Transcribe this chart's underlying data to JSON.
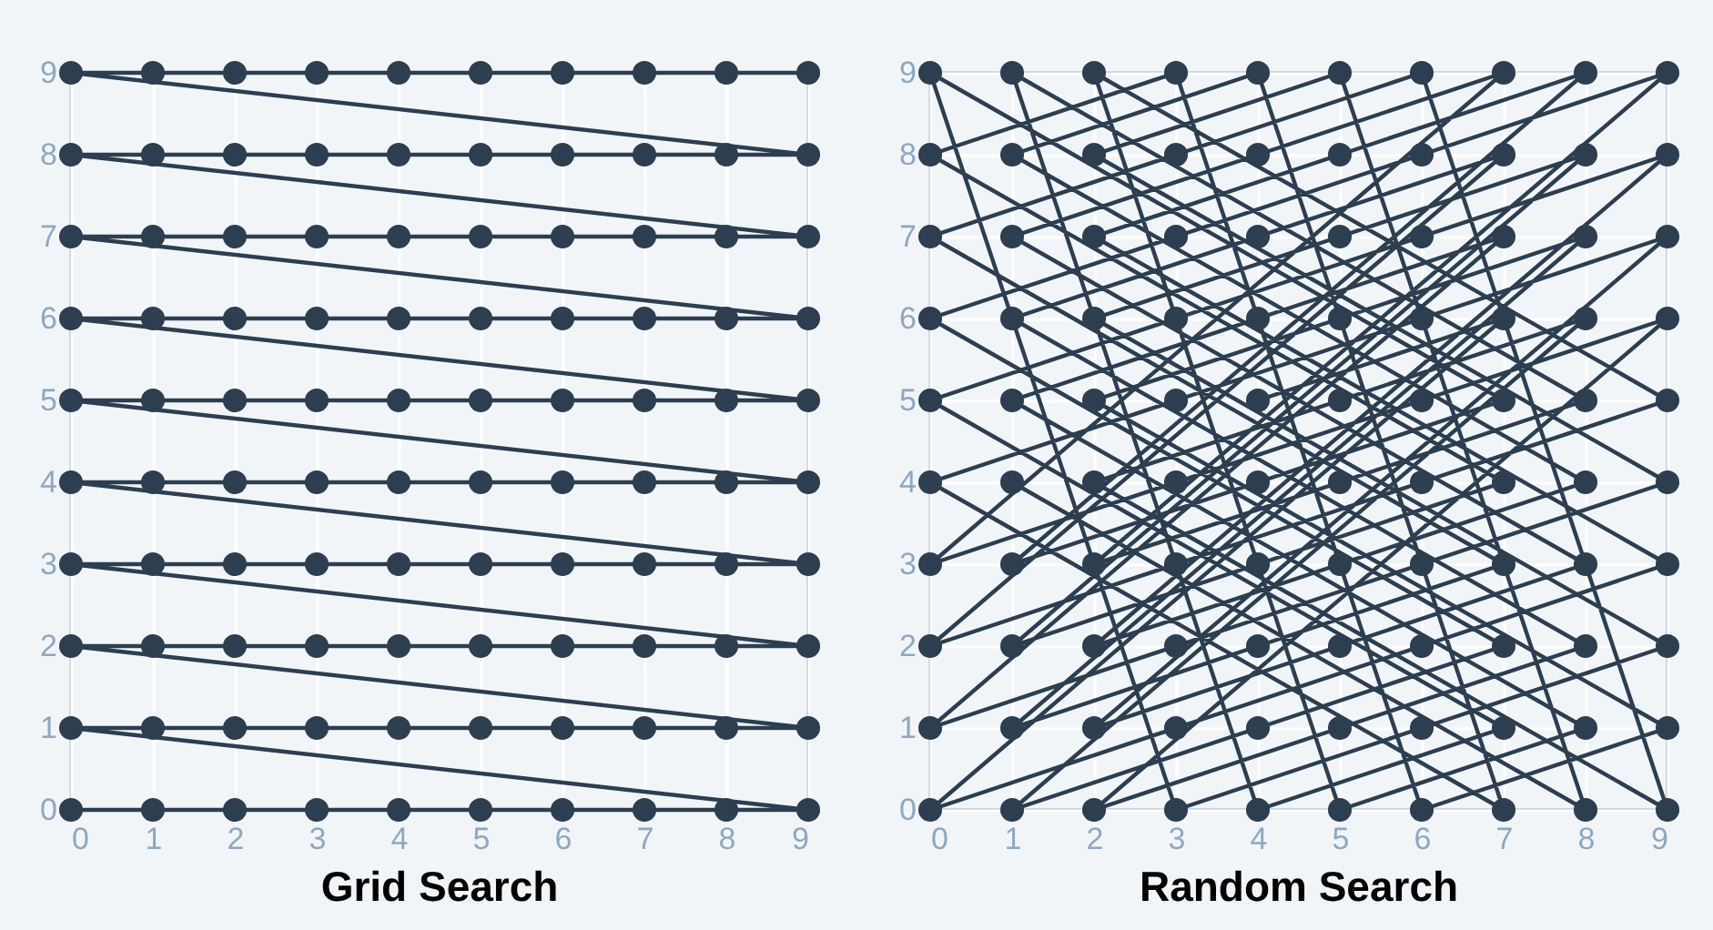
{
  "chart_data": [
    {
      "type": "line",
      "title": "Grid Search",
      "marker": "circle",
      "grid": true,
      "xlim": [
        0,
        9
      ],
      "ylim": [
        0,
        9
      ],
      "xticks": [
        0,
        1,
        2,
        3,
        4,
        5,
        6,
        7,
        8,
        9
      ],
      "yticks": [
        0,
        1,
        2,
        3,
        4,
        5,
        6,
        7,
        8,
        9
      ],
      "x": [
        0,
        1,
        2,
        3,
        4,
        5,
        6,
        7,
        8,
        9,
        0,
        1,
        2,
        3,
        4,
        5,
        6,
        7,
        8,
        9,
        0,
        1,
        2,
        3,
        4,
        5,
        6,
        7,
        8,
        9,
        0,
        1,
        2,
        3,
        4,
        5,
        6,
        7,
        8,
        9,
        0,
        1,
        2,
        3,
        4,
        5,
        6,
        7,
        8,
        9,
        0,
        1,
        2,
        3,
        4,
        5,
        6,
        7,
        8,
        9,
        0,
        1,
        2,
        3,
        4,
        5,
        6,
        7,
        8,
        9,
        0,
        1,
        2,
        3,
        4,
        5,
        6,
        7,
        8,
        9,
        0,
        1,
        2,
        3,
        4,
        5,
        6,
        7,
        8,
        9,
        0,
        1,
        2,
        3,
        4,
        5,
        6,
        7,
        8,
        9
      ],
      "series": [
        {
          "color": "#2c3e50",
          "values": [
            0,
            0,
            0,
            0,
            0,
            0,
            0,
            0,
            0,
            0,
            1,
            1,
            1,
            1,
            1,
            1,
            1,
            1,
            1,
            1,
            2,
            2,
            2,
            2,
            2,
            2,
            2,
            2,
            2,
            2,
            3,
            3,
            3,
            3,
            3,
            3,
            3,
            3,
            3,
            3,
            4,
            4,
            4,
            4,
            4,
            4,
            4,
            4,
            4,
            4,
            5,
            5,
            5,
            5,
            5,
            5,
            5,
            5,
            5,
            5,
            6,
            6,
            6,
            6,
            6,
            6,
            6,
            6,
            6,
            6,
            7,
            7,
            7,
            7,
            7,
            7,
            7,
            7,
            7,
            7,
            8,
            8,
            8,
            8,
            8,
            8,
            8,
            8,
            8,
            8,
            9,
            9,
            9,
            9,
            9,
            9,
            9,
            9,
            9,
            9
          ]
        }
      ]
    },
    {
      "type": "line",
      "title": "Random Search",
      "marker": "circle",
      "grid": true,
      "xlim": [
        0,
        9
      ],
      "ylim": [
        0,
        9
      ],
      "xticks": [
        0,
        1,
        2,
        3,
        4,
        5,
        6,
        7,
        8,
        9
      ],
      "yticks": [
        0,
        1,
        2,
        3,
        4,
        5,
        6,
        7,
        8,
        9
      ],
      "x": [
        1,
        8,
        5,
        2,
        9,
        6,
        3,
        0,
        7,
        4,
        1,
        8,
        5,
        2,
        9,
        6,
        3,
        0,
        7,
        4,
        1,
        8,
        5,
        2,
        9,
        6,
        3,
        0,
        7,
        4,
        1,
        8,
        5,
        2,
        9,
        6,
        3,
        0,
        7,
        4,
        1,
        8,
        5,
        2,
        9,
        6,
        3,
        0,
        7,
        4,
        1,
        8,
        5,
        2,
        9,
        6,
        3,
        0,
        7,
        4,
        1,
        8,
        5,
        2,
        9,
        6,
        3,
        0,
        7,
        4,
        1,
        8,
        5,
        2,
        9,
        6,
        3,
        0,
        7,
        4,
        1,
        8,
        5,
        2,
        9,
        6,
        3,
        0,
        7,
        4,
        1,
        8,
        5,
        2,
        9,
        6,
        3,
        0,
        7,
        4
      ],
      "series": [
        {
          "color": "#2c3e50",
          "values": [
            4,
            0,
            9,
            8,
            4,
            3,
            2,
            1,
            7,
            6,
            5,
            1,
            0,
            9,
            5,
            4,
            3,
            2,
            8,
            7,
            6,
            2,
            1,
            0,
            6,
            5,
            4,
            3,
            9,
            8,
            7,
            3,
            2,
            1,
            7,
            6,
            5,
            4,
            0,
            9,
            8,
            4,
            3,
            2,
            8,
            7,
            6,
            5,
            1,
            0,
            9,
            5,
            4,
            3,
            9,
            8,
            7,
            6,
            2,
            1,
            0,
            6,
            5,
            4,
            0,
            9,
            8,
            7,
            3,
            2,
            1,
            7,
            6,
            5,
            1,
            0,
            9,
            8,
            4,
            3,
            2,
            8,
            7,
            6,
            2,
            1,
            0,
            9,
            5,
            4,
            3,
            9,
            8,
            7,
            3,
            2,
            1,
            0,
            6,
            5
          ]
        }
      ]
    }
  ]
}
